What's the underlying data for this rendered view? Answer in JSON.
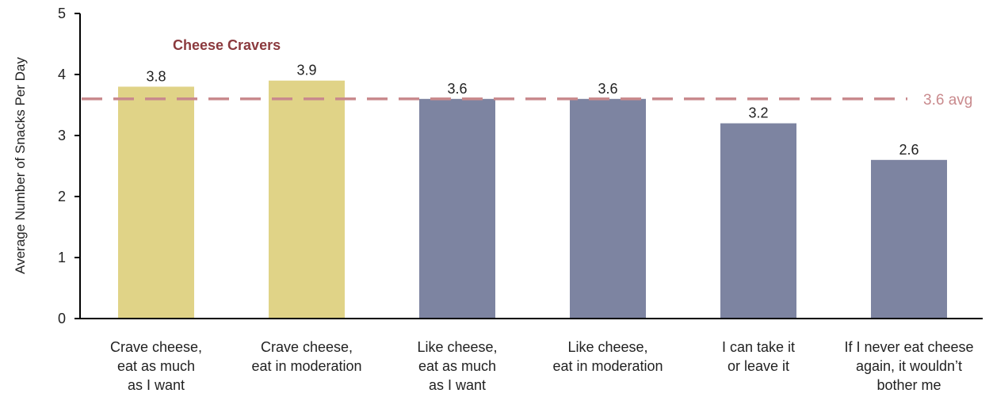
{
  "chart_data": {
    "type": "bar",
    "categories": [
      [
        "Crave cheese,",
        "eat as much",
        "as I want"
      ],
      [
        "Crave cheese,",
        "eat in moderation"
      ],
      [
        "Like cheese,",
        "eat as much",
        "as I want"
      ],
      [
        "Like cheese,",
        "eat in moderation"
      ],
      [
        "I can take it",
        "or leave it"
      ],
      [
        "If I never eat cheese",
        "again, it wouldn’t",
        "bother me"
      ]
    ],
    "values": [
      3.8,
      3.9,
      3.6,
      3.6,
      3.2,
      2.6
    ],
    "value_labels": [
      "3.8",
      "3.9",
      "3.6",
      "3.6",
      "3.2",
      "2.6"
    ],
    "title": "",
    "xlabel": "",
    "ylabel": "Average Number of Snacks Per Day",
    "ylim": [
      0,
      5
    ],
    "yticks": [
      0,
      1,
      2,
      3,
      4,
      5
    ],
    "grid": false,
    "group_annotation": {
      "text": "Cheese Cravers",
      "categories": [
        0,
        1
      ],
      "color": "#8b3a3e"
    },
    "reference_line": {
      "value": 3.6,
      "label": "3.6 avg",
      "style": "dashed",
      "color": "#c98a8d"
    },
    "colors": {
      "highlight": "#e0d387",
      "default": "#7d84a1",
      "axis": "#000000"
    }
  }
}
